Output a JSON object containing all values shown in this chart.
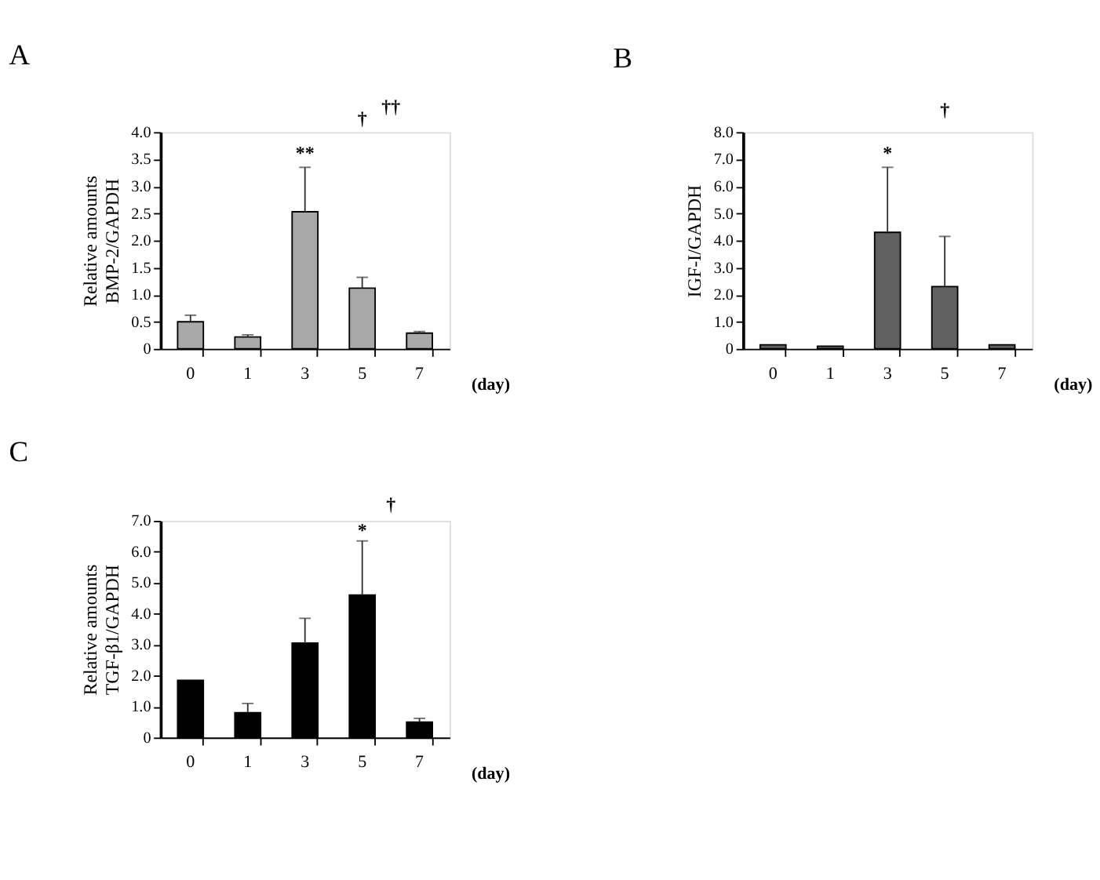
{
  "chart_data": [
    {
      "type": "bar",
      "title": "A",
      "ylabel": "Relative amounts\nBMP-2/GAPDH",
      "xlabel": "(day)",
      "categories": [
        "0",
        "1",
        "3",
        "5",
        "7"
      ],
      "values": [
        0.5,
        0.22,
        2.53,
        1.12,
        0.29
      ],
      "errors": [
        [
          0.5,
          0.62
        ],
        [
          0.22,
          0.26
        ],
        [
          2.53,
          3.35
        ],
        [
          1.12,
          1.32
        ],
        [
          0.29,
          0.32
        ]
      ],
      "color": "#a8a8a8",
      "ylim": [
        0,
        4
      ],
      "yticks": [
        0,
        0.5,
        {
          "value": 1,
          "label": "1.0"
        },
        1.5,
        {
          "value": 2,
          "label": "2.0"
        },
        2.5,
        {
          "value": 3,
          "label": "3.0"
        },
        3.5,
        {
          "value": 4,
          "label": "4.0"
        }
      ],
      "grid": false,
      "annotations": [
        "**",
        "†",
        "††"
      ]
    },
    {
      "type": "bar",
      "title": "B",
      "ylabel": "IGF-I/GAPDH",
      "xlabel": "(day)",
      "categories": [
        "0",
        "1",
        "3",
        "5",
        "7"
      ],
      "values": [
        0.15,
        0.1,
        4.3,
        2.3,
        0.15
      ],
      "errors": [
        null,
        null,
        [
          4.3,
          6.7
        ],
        [
          2.3,
          4.15
        ],
        null
      ],
      "color": "#606060",
      "ylim": [
        0,
        8
      ],
      "yticks": [
        0,
        {
          "value": 1,
          "label": "1.0"
        },
        {
          "value": 2,
          "label": "2.0"
        },
        {
          "value": 3,
          "label": "3.0"
        },
        {
          "value": 4,
          "label": "4.0"
        },
        {
          "value": 5,
          "label": "5.0"
        },
        {
          "value": 6,
          "label": "6.0"
        },
        {
          "value": 7,
          "label": "7.0"
        },
        {
          "value": 8,
          "label": "8.0"
        }
      ],
      "grid": false,
      "annotations": [
        "*",
        "†"
      ]
    },
    {
      "type": "bar",
      "title": "C",
      "ylabel": "Relative amounts\nTGF-β1/GAPDH",
      "xlabel": "(day)",
      "categories": [
        "0",
        "1",
        "3",
        "5",
        "7"
      ],
      "values": [
        1.85,
        0.8,
        3.05,
        4.6,
        0.5
      ],
      "errors": [
        null,
        [
          0.8,
          1.1
        ],
        [
          3.05,
          3.85
        ],
        [
          4.6,
          6.35
        ],
        [
          0.5,
          0.62
        ]
      ],
      "color": "#000000",
      "ylim": [
        0,
        7
      ],
      "yticks": [
        0,
        {
          "value": 1,
          "label": "1.0"
        },
        {
          "value": 2,
          "label": "2.0"
        },
        {
          "value": 3,
          "label": "3.0"
        },
        {
          "value": 4,
          "label": "4.0"
        },
        {
          "value": 5,
          "label": "5.0"
        },
        {
          "value": 6,
          "label": "6.0"
        },
        {
          "value": 7,
          "label": "7.0"
        }
      ],
      "grid": false,
      "annotations": [
        "*",
        "†"
      ]
    }
  ]
}
